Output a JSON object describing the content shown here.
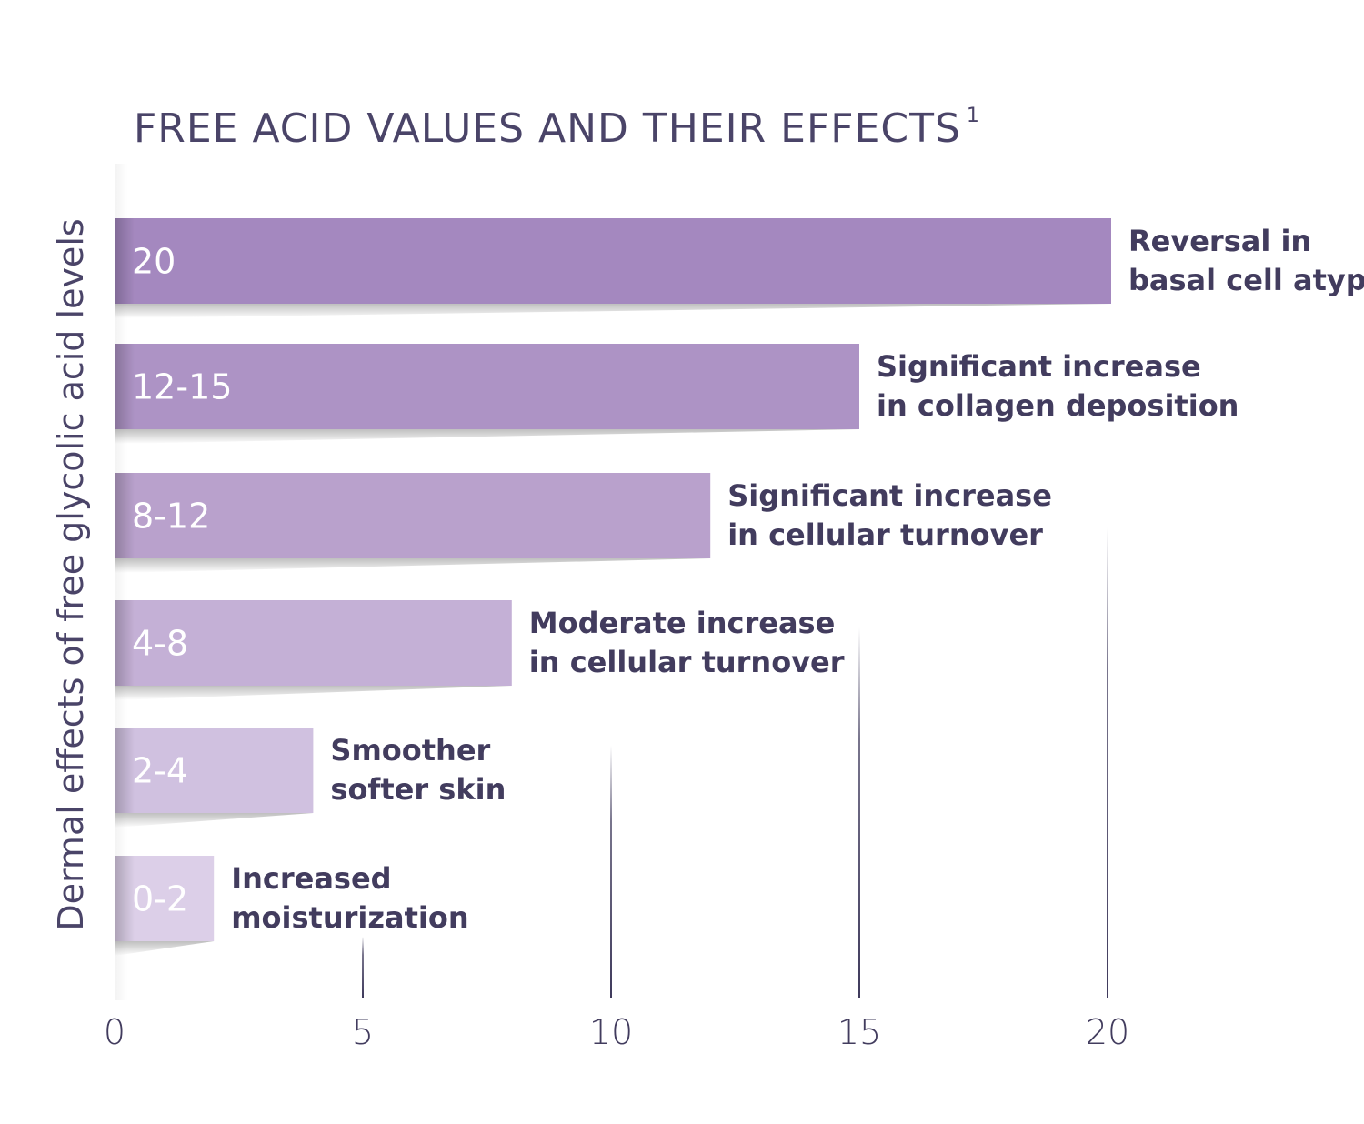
{
  "chart_data": {
    "type": "bar",
    "orientation": "horizontal",
    "title": "FREE ACID VALUES AND THEIR EFFECTS",
    "title_superscript": "1",
    "ylabel": "Dermal effects of free glycolic acid levels",
    "xlabel": "",
    "xlim": [
      0,
      20
    ],
    "xticks": [
      "0",
      "5",
      "10",
      "15",
      "20"
    ],
    "grid": "vertical lines at ticks, fading upward",
    "categories": [
      "20",
      "12-15",
      "8-12",
      "4-8",
      "2-4",
      "0-2"
    ],
    "values": [
      20,
      15,
      12,
      8,
      4,
      2
    ],
    "effects": [
      [
        "Reversal in",
        "basal cell atypia"
      ],
      [
        "Significant increase",
        "in collagen deposition"
      ],
      [
        "Significant increase",
        "in cellular turnover"
      ],
      [
        "Moderate increase",
        "in cellular turnover"
      ],
      [
        "Smoother",
        "softer skin"
      ],
      [
        "Increased",
        "moisturization"
      ]
    ],
    "colors": [
      "#a488bf",
      "#ad93c5",
      "#b9a1cc",
      "#c4b0d6",
      "#d0c1e0",
      "#dccfe8"
    ]
  }
}
